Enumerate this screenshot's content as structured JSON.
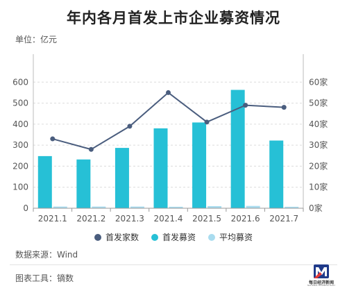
{
  "header": {
    "title": "年内各月首发上市企业募资情况",
    "unit_label": "单位：亿元"
  },
  "footer": {
    "source": "数据来源：Wind",
    "tool": "图表工具：镝数",
    "logo_text": "每日经济新闻",
    "logo_subtext": "NATIONAL BUSINESS DAILY"
  },
  "legend": {
    "items": [
      {
        "label": "首发家数",
        "color": "#4a5d7e"
      },
      {
        "label": "首发募资",
        "color": "#26c0d6"
      },
      {
        "label": "平均募资",
        "color": "#a9dcef"
      }
    ]
  },
  "chart_data": {
    "type": "bar",
    "categories": [
      "2021.1",
      "2021.2",
      "2021.3",
      "2021.4",
      "2021.5",
      "2021.6",
      "2021.7"
    ],
    "series": [
      {
        "name": "首发募资",
        "type": "bar",
        "axis": "left",
        "color": "#26c0d6",
        "values": [
          248,
          232,
          287,
          380,
          408,
          563,
          322
        ]
      },
      {
        "name": "平均募资",
        "type": "bar",
        "axis": "left",
        "color": "#a9dcef",
        "values": [
          8,
          8,
          8,
          7,
          10,
          11,
          7
        ]
      },
      {
        "name": "首发家数",
        "type": "line",
        "axis": "right",
        "color": "#4a5d7e",
        "values": [
          33,
          28,
          39,
          55,
          41,
          49,
          48
        ]
      }
    ],
    "y_left": {
      "min": 0,
      "max": 700,
      "ticks": [
        0,
        100,
        200,
        300,
        400,
        500,
        600
      ]
    },
    "y_right": {
      "min": 0,
      "max": 70,
      "ticks": [
        0,
        10,
        20,
        30,
        40,
        50,
        60
      ],
      "tick_suffix": "家"
    },
    "grid": true,
    "legend_position": "bottom"
  }
}
